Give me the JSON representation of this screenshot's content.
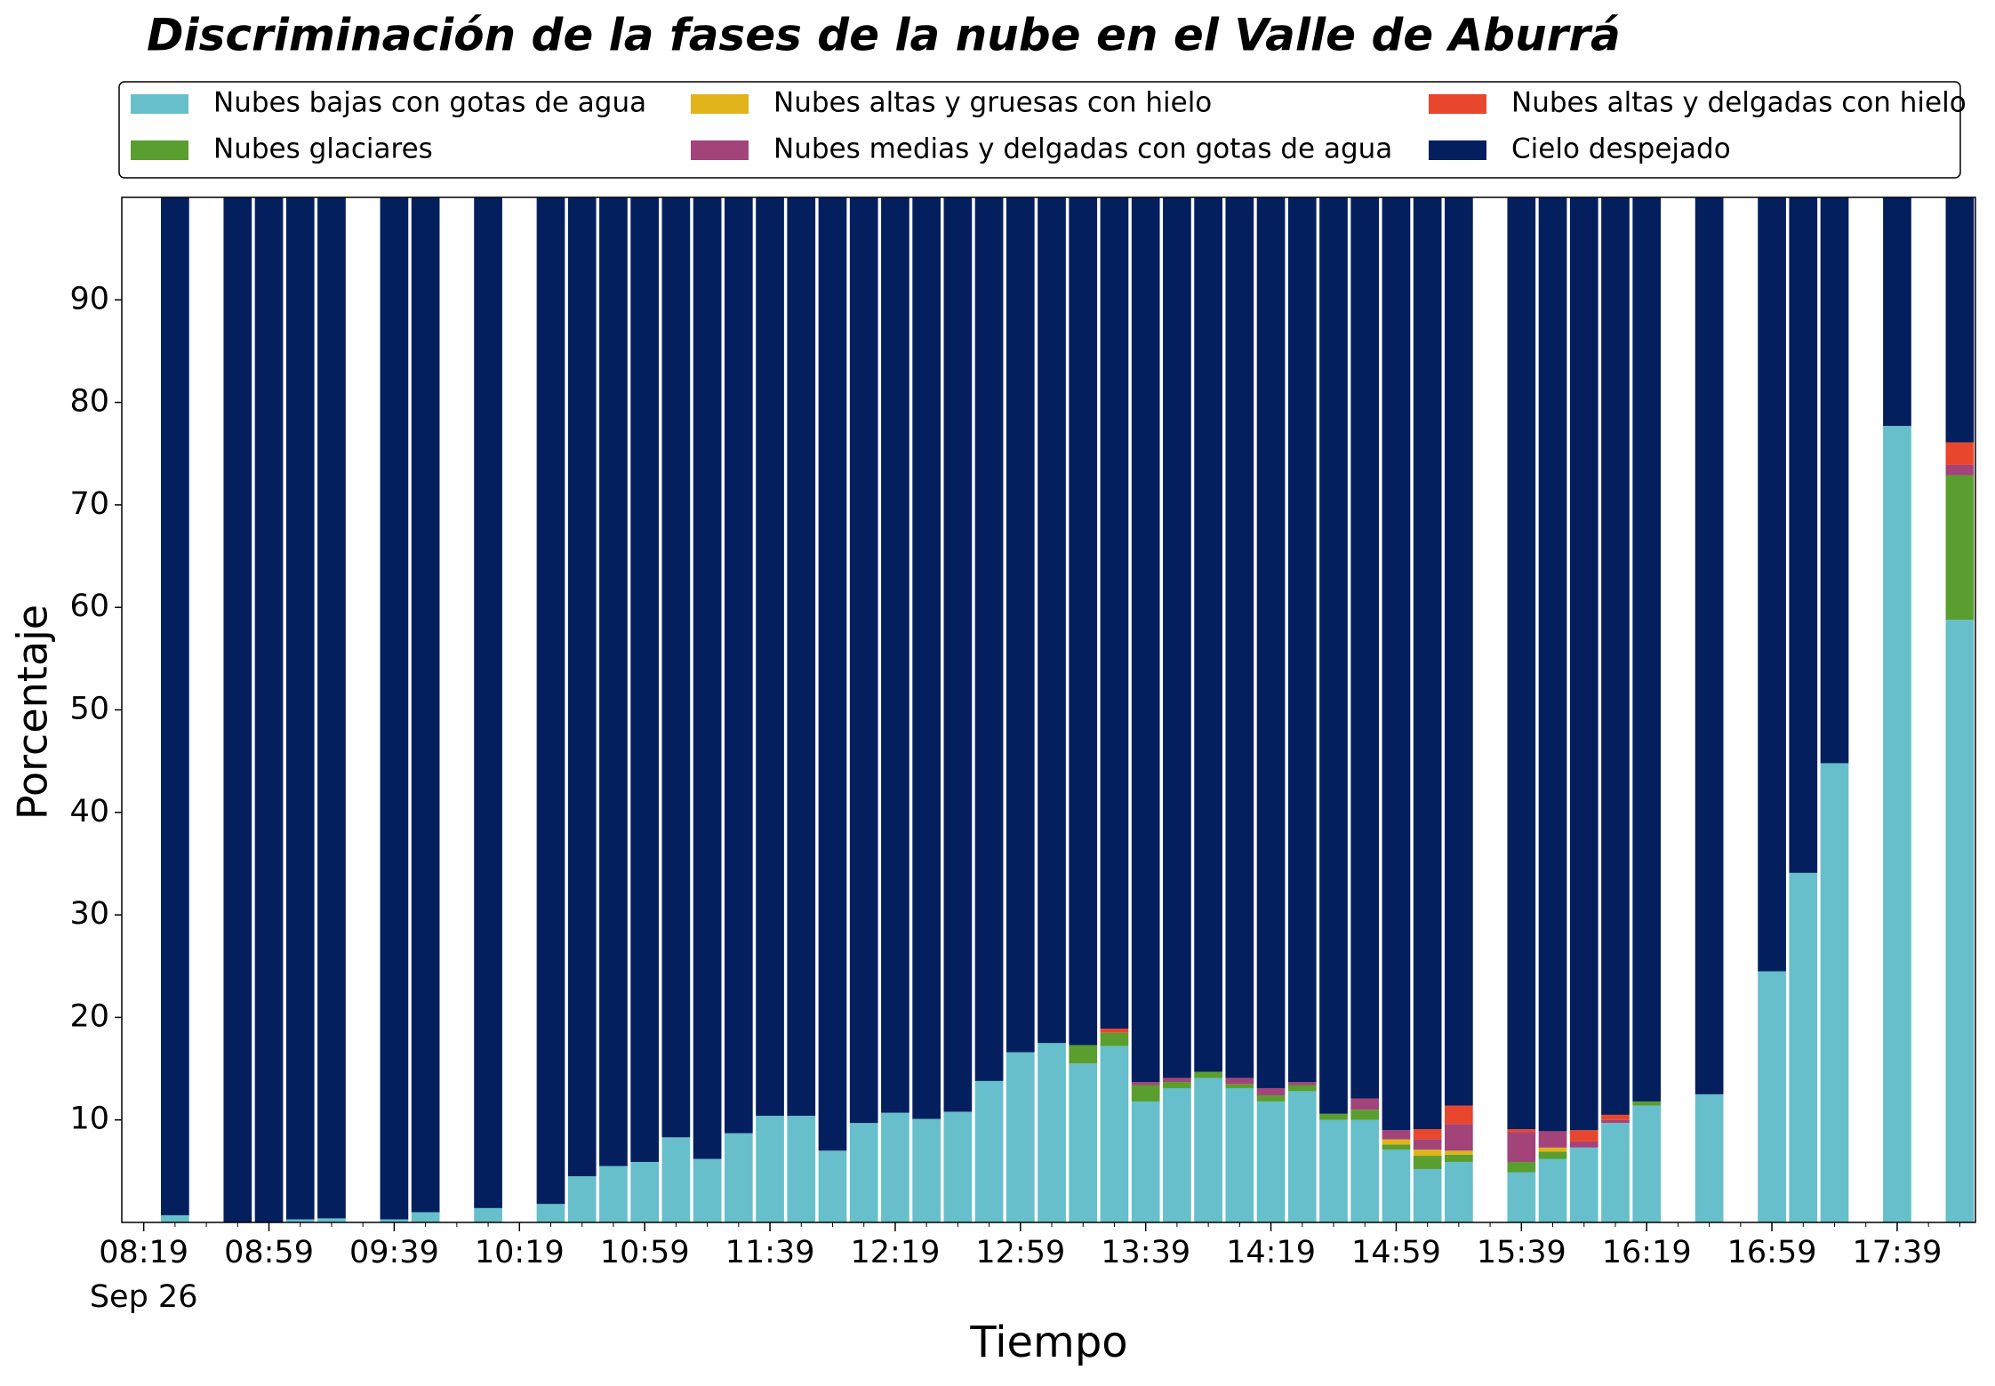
{
  "chart_data": {
    "type": "stacked_bar",
    "title": "Discriminación de la fases de la nube en el Valle de Aburrá",
    "xlabel": "Tiempo",
    "ylabel": "Porcentaje",
    "x": [
      "08:29",
      "08:49",
      "08:59",
      "09:09",
      "09:19",
      "09:39",
      "09:49",
      "10:09",
      "10:29",
      "10:39",
      "10:49",
      "10:59",
      "11:09",
      "11:19",
      "11:29",
      "11:39",
      "11:49",
      "11:59",
      "12:09",
      "12:19",
      "12:29",
      "12:39",
      "12:49",
      "12:59",
      "13:09",
      "13:19",
      "13:29",
      "13:39",
      "13:49",
      "13:59",
      "14:09",
      "14:19",
      "14:29",
      "14:39",
      "14:49",
      "14:59",
      "15:09",
      "15:19",
      "15:39",
      "15:49",
      "15:59",
      "16:09",
      "16:19",
      "16:39",
      "16:59",
      "17:09",
      "17:19",
      "17:39",
      "17:59"
    ],
    "xlim": [
      "08:12",
      "18:04"
    ],
    "xticks": [
      "08:19",
      "08:59",
      "09:39",
      "10:19",
      "10:59",
      "11:39",
      "12:19",
      "12:59",
      "13:39",
      "14:19",
      "14:59",
      "15:39",
      "16:19",
      "16:59",
      "17:39"
    ],
    "date_label": "Sep 26",
    "ylim": [
      0,
      100
    ],
    "yticks": [
      10,
      20,
      30,
      40,
      50,
      60,
      70,
      80,
      90
    ],
    "legend": "top",
    "series": [
      {
        "name": "Nubes bajas con gotas de agua",
        "color": "#66bfcb",
        "values": [
          0.7,
          0,
          0,
          0.3,
          0.4,
          0.3,
          1.0,
          1.4,
          1.8,
          4.5,
          5.5,
          5.9,
          8.3,
          6.2,
          8.7,
          10.4,
          10.4,
          7.0,
          9.7,
          10.7,
          10.1,
          10.8,
          13.8,
          16.6,
          17.5,
          15.5,
          17.2,
          11.8,
          13.1,
          14.1,
          13.1,
          11.8,
          12.8,
          10.0,
          10.0,
          7.1,
          5.2,
          5.9,
          4.9,
          6.2,
          7.3,
          9.7,
          11.4,
          12.5,
          24.5,
          34.1,
          44.8,
          77.7,
          58.8
        ]
      },
      {
        "name": "Nubes glaciares",
        "color": "#5a9e2f",
        "values": [
          0,
          0,
          0,
          0,
          0,
          0,
          0,
          0,
          0,
          0,
          0,
          0,
          0,
          0,
          0,
          0,
          0,
          0,
          0,
          0,
          0,
          0,
          0,
          0,
          0,
          1.8,
          1.3,
          1.6,
          0.6,
          0.6,
          0.4,
          0.6,
          0.6,
          0.6,
          1.0,
          0.5,
          1.3,
          0.7,
          1.0,
          0.7,
          0,
          0,
          0.4,
          0,
          0,
          0,
          0,
          0,
          14.1
        ]
      },
      {
        "name": "Nubes altas y gruesas con hielo",
        "color": "#e0b41a",
        "values": [
          0,
          0,
          0,
          0,
          0,
          0,
          0,
          0,
          0,
          0,
          0,
          0,
          0,
          0,
          0,
          0,
          0,
          0,
          0,
          0,
          0,
          0,
          0,
          0,
          0,
          0,
          0,
          0,
          0,
          0,
          0,
          0,
          0,
          0,
          0,
          0.5,
          0.6,
          0.4,
          0,
          0.4,
          0,
          0,
          0,
          0,
          0,
          0,
          0,
          0,
          0
        ]
      },
      {
        "name": "Nubes medias y delgadas con gotas de agua",
        "color": "#a2447a",
        "values": [
          0,
          0,
          0,
          0,
          0,
          0,
          0,
          0,
          0,
          0,
          0,
          0,
          0,
          0,
          0,
          0,
          0,
          0,
          0,
          0,
          0,
          0,
          0,
          0,
          0,
          0,
          0,
          0.3,
          0.4,
          0,
          0.6,
          0.7,
          0.3,
          0,
          1.1,
          0.9,
          1.0,
          2.6,
          2.9,
          1.6,
          0.6,
          0.3,
          0,
          0,
          0,
          0,
          0,
          0,
          1.0
        ]
      },
      {
        "name": "Nubes altas y delgadas con hielo",
        "color": "#e8472d",
        "values": [
          0,
          0,
          0,
          0,
          0,
          0,
          0,
          0,
          0,
          0,
          0,
          0,
          0,
          0,
          0,
          0,
          0,
          0,
          0,
          0,
          0,
          0,
          0,
          0,
          0,
          0,
          0.4,
          0,
          0,
          0,
          0,
          0,
          0,
          0,
          0,
          0,
          1.0,
          1.8,
          0.3,
          0,
          1.1,
          0.5,
          0,
          0,
          0,
          0,
          0,
          0,
          2.2
        ]
      },
      {
        "name": "Cielo despejado",
        "color": "#041f5e",
        "values": [
          99.3,
          100,
          100,
          99.7,
          99.6,
          99.7,
          99.0,
          98.6,
          98.2,
          95.5,
          94.5,
          94.1,
          91.7,
          93.8,
          91.3,
          89.6,
          89.6,
          93.0,
          90.3,
          89.3,
          89.9,
          89.2,
          86.2,
          83.4,
          82.5,
          82.7,
          81.1,
          86.3,
          85.9,
          85.3,
          85.9,
          86.9,
          86.3,
          89.4,
          87.9,
          91.0,
          90.9,
          88.6,
          90.9,
          91.1,
          91.0,
          89.5,
          88.2,
          87.5,
          75.5,
          65.9,
          55.2,
          22.3,
          23.9
        ]
      }
    ]
  }
}
